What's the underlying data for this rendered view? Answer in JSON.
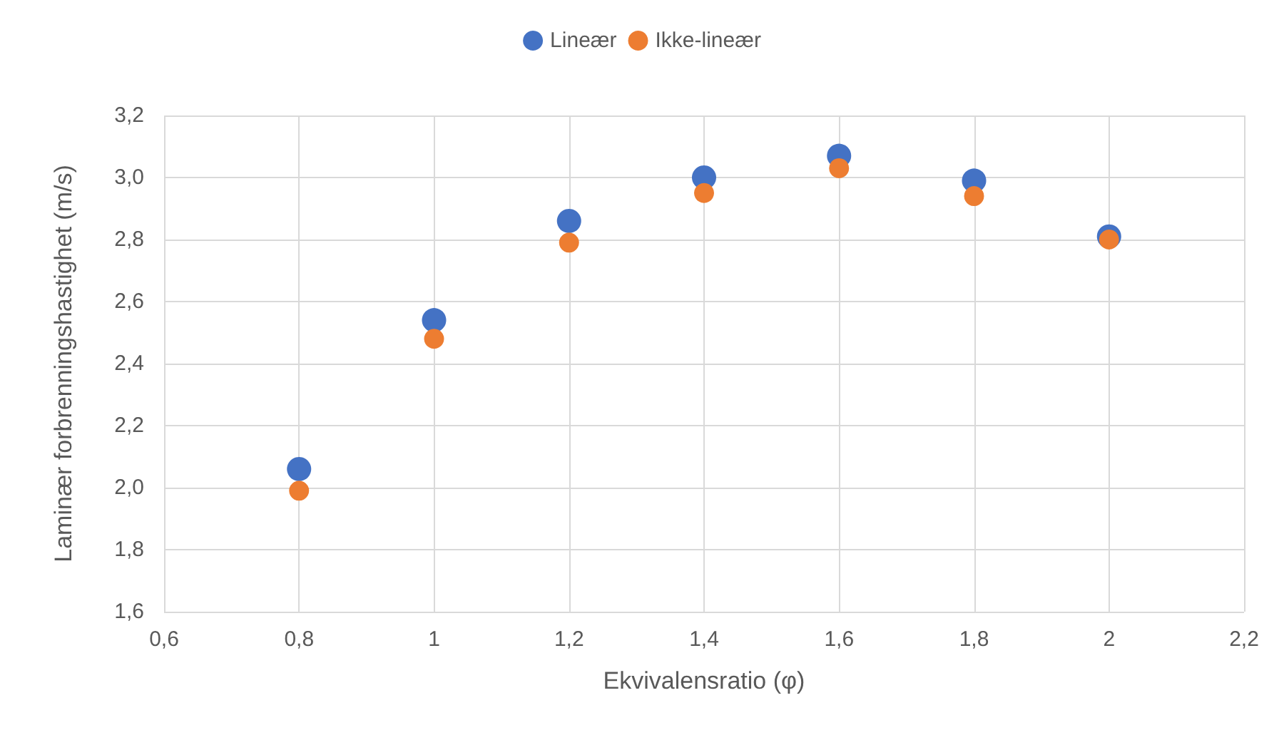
{
  "chart_data": {
    "type": "scatter",
    "xlabel": "Ekvivalensratio (φ)",
    "ylabel": "Laminær forbrenningshastighet (m/s)",
    "xlim": [
      0.6,
      2.2
    ],
    "xticks": [
      {
        "value": 0.6,
        "label": "0,6"
      },
      {
        "value": 0.8,
        "label": "0,8"
      },
      1,
      {
        "value": 1.2,
        "label": "1,2"
      },
      {
        "value": 1.4,
        "label": "1,4"
      },
      {
        "value": 1.6,
        "label": "1,6"
      },
      {
        "value": 1.8,
        "label": "1,8"
      },
      2,
      {
        "value": 2.2,
        "label": "2,2"
      }
    ],
    "ylim": [
      1.6,
      3.2
    ],
    "yticks": [
      {
        "value": 1.6,
        "label": "1,6"
      },
      {
        "value": 1.8,
        "label": "1,8"
      },
      {
        "value": 2.0,
        "label": "2,0"
      },
      {
        "value": 2.2,
        "label": "2,2"
      },
      {
        "value": 2.4,
        "label": "2,4"
      },
      {
        "value": 2.6,
        "label": "2,6"
      },
      {
        "value": 2.8,
        "label": "2,8"
      },
      {
        "value": 3.0,
        "label": "3,0"
      },
      {
        "value": 3.2,
        "label": "3,2"
      }
    ],
    "x": [
      0.8,
      1,
      1.2,
      1.4,
      1.6,
      1.8,
      2
    ],
    "series": [
      {
        "name": "Lineær",
        "color": "#4472c4",
        "values": [
          2.06,
          2.54,
          2.86,
          3.0,
          3.07,
          2.99,
          2.81
        ]
      },
      {
        "name": "Ikke-lineær",
        "color": "#ed7d31",
        "values": [
          1.99,
          2.48,
          2.79,
          2.95,
          3.03,
          2.94,
          2.8
        ]
      }
    ],
    "grid": true,
    "legend": "top",
    "marker": "circle"
  }
}
